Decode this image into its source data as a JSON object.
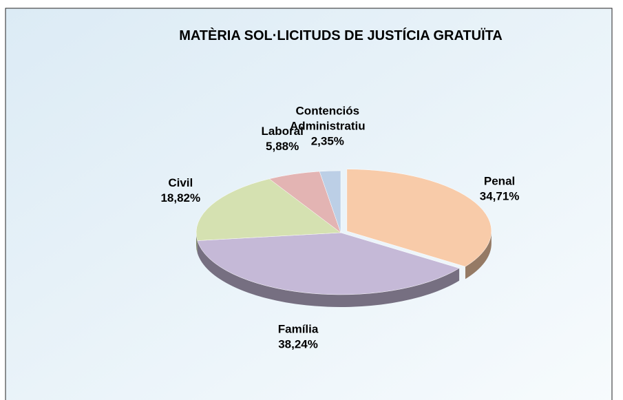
{
  "chart_data": {
    "type": "pie",
    "title": "MATÈRIA SOL·LICITUDS DE JUSTÍCIA GRATUÏTA",
    "categories": [
      "Penal",
      "Família",
      "Civil",
      "Laboral",
      "Contenciós Administratiu"
    ],
    "values": [
      34.71,
      38.24,
      18.82,
      5.88,
      2.35
    ],
    "value_labels": [
      "34,71%",
      "38,24%",
      "18,82%",
      "5,88%",
      "2,35%"
    ],
    "colors": [
      "#f8cba9",
      "#c5b9d7",
      "#d5e1b1",
      "#e3b4b3",
      "#bccfe6"
    ]
  }
}
